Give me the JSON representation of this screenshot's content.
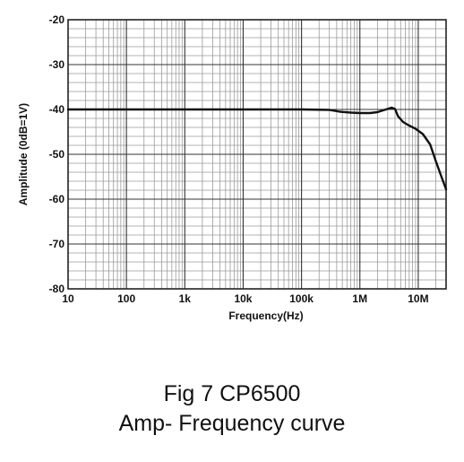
{
  "chart_data": {
    "type": "line",
    "xlabel": "Frequency(Hz)",
    "ylabel": "Amplitude (0dB=1V)",
    "xscale": "log",
    "xlim": [
      10,
      30000000
    ],
    "ylim": [
      -80,
      -20
    ],
    "xticks": [
      {
        "value": 10,
        "label": "10"
      },
      {
        "value": 100,
        "label": "100"
      },
      {
        "value": 1000,
        "label": "1k"
      },
      {
        "value": 10000,
        "label": "10k"
      },
      {
        "value": 100000,
        "label": "100k"
      },
      {
        "value": 1000000,
        "label": "1M"
      },
      {
        "value": 10000000,
        "label": "10M"
      }
    ],
    "yticks": [
      {
        "value": -20,
        "label": "-20"
      },
      {
        "value": -30,
        "label": "-30"
      },
      {
        "value": -40,
        "label": "-40"
      },
      {
        "value": -50,
        "label": "-50"
      },
      {
        "value": -60,
        "label": "-60"
      },
      {
        "value": -70,
        "label": "-70"
      },
      {
        "value": -80,
        "label": "-80"
      }
    ],
    "grid": true,
    "series": [
      {
        "color": "#111111",
        "points": [
          [
            10,
            -40.0
          ],
          [
            100,
            -40.0
          ],
          [
            1000,
            -40.0
          ],
          [
            10000,
            -40.0
          ],
          [
            100000,
            -40.0
          ],
          [
            300000,
            -40.1
          ],
          [
            450000,
            -40.5
          ],
          [
            700000,
            -40.7
          ],
          [
            1000000,
            -40.8
          ],
          [
            1500000,
            -40.8
          ],
          [
            2000000,
            -40.6
          ],
          [
            2800000,
            -40.0
          ],
          [
            3500000,
            -39.6
          ],
          [
            4000000,
            -39.9
          ],
          [
            4500000,
            -41.5
          ],
          [
            5500000,
            -42.8
          ],
          [
            7000000,
            -43.6
          ],
          [
            9000000,
            -44.3
          ],
          [
            12000000,
            -45.5
          ],
          [
            16000000,
            -47.8
          ],
          [
            20000000,
            -51.5
          ],
          [
            25000000,
            -55.0
          ],
          [
            30000000,
            -57.8
          ]
        ]
      }
    ]
  },
  "caption": {
    "line1": "Fig 7 CP6500",
    "line2": "Amp- Frequency curve"
  }
}
